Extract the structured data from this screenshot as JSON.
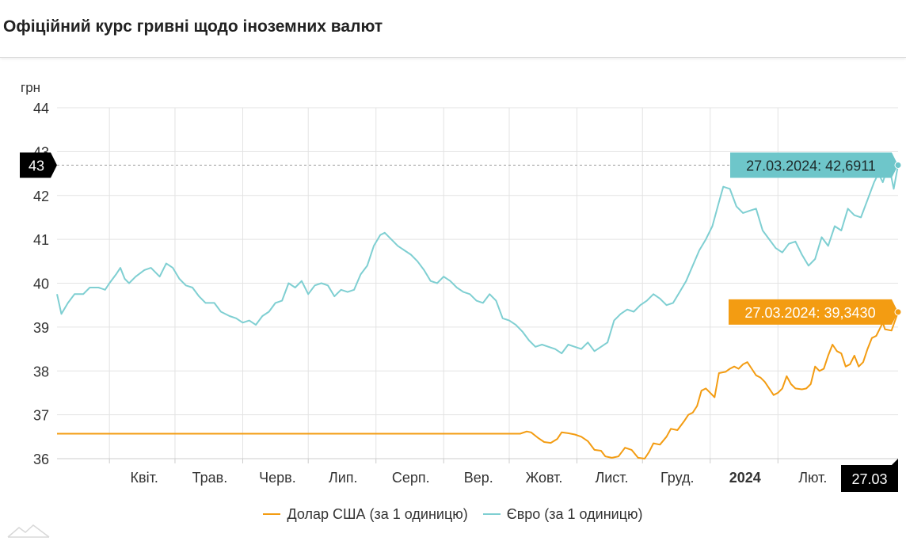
{
  "title": "Офіційний курс гривні щодо іноземних валют",
  "legend": {
    "usd": "Долар США (за 1 одиницю)",
    "eur": "Євро (за 1 одиницю)"
  },
  "colors": {
    "usd": "#f39c12",
    "eur": "#7fcfd2",
    "usd_label_bg": "#f39c12",
    "eur_label_bg": "#6ec6ca",
    "marker_bg": "#000000"
  },
  "crosshair": {
    "y_value_label": "43",
    "x_date_label": "27.03"
  },
  "chart_data": {
    "type": "line",
    "ylabel": "грн",
    "ylim": [
      36,
      44
    ],
    "yticks": [
      "36",
      "37",
      "38",
      "39",
      "40",
      "41",
      "42",
      "43",
      "44"
    ],
    "xlim": [
      "2023-03-08",
      "2024-03-27"
    ],
    "xticks": [
      {
        "label": "Квіт.",
        "date": "2023-04-01",
        "bold": false
      },
      {
        "label": "Трав.",
        "date": "2023-05-01",
        "bold": false
      },
      {
        "label": "Черв.",
        "date": "2023-06-01",
        "bold": false
      },
      {
        "label": "Лип.",
        "date": "2023-07-01",
        "bold": false
      },
      {
        "label": "Серп.",
        "date": "2023-08-01",
        "bold": false
      },
      {
        "label": "Вер.",
        "date": "2023-09-01",
        "bold": false
      },
      {
        "label": "Жовт.",
        "date": "2023-10-01",
        "bold": false
      },
      {
        "label": "Лист.",
        "date": "2023-11-01",
        "bold": false
      },
      {
        "label": "Груд.",
        "date": "2023-12-01",
        "bold": false
      },
      {
        "label": "2024",
        "date": "2024-01-01",
        "bold": true
      },
      {
        "label": "Лют.",
        "date": "2024-02-01",
        "bold": false
      }
    ],
    "grid": true,
    "series": [
      {
        "name": "Долар США (за 1 одиницю)",
        "key": "usd",
        "points": [
          [
            "2023-03-08",
            36.5686
          ],
          [
            "2023-10-06",
            36.5686
          ],
          [
            "2023-10-09",
            36.62
          ],
          [
            "2023-10-11",
            36.6
          ],
          [
            "2023-10-14",
            36.48
          ],
          [
            "2023-10-17",
            36.38
          ],
          [
            "2023-10-20",
            36.36
          ],
          [
            "2023-10-23",
            36.45
          ],
          [
            "2023-10-25",
            36.6
          ],
          [
            "2023-10-28",
            36.58
          ],
          [
            "2023-10-31",
            36.55
          ],
          [
            "2023-11-03",
            36.5
          ],
          [
            "2023-11-06",
            36.4
          ],
          [
            "2023-11-09",
            36.2
          ],
          [
            "2023-11-12",
            36.18
          ],
          [
            "2023-11-14",
            36.05
          ],
          [
            "2023-11-17",
            36.02
          ],
          [
            "2023-11-20",
            36.05
          ],
          [
            "2023-11-23",
            36.25
          ],
          [
            "2023-11-26",
            36.2
          ],
          [
            "2023-11-29",
            36.02
          ],
          [
            "2023-12-02",
            36.0
          ],
          [
            "2023-12-04",
            36.15
          ],
          [
            "2023-12-06",
            36.35
          ],
          [
            "2023-12-09",
            36.32
          ],
          [
            "2023-12-12",
            36.5
          ],
          [
            "2023-12-14",
            36.68
          ],
          [
            "2023-12-17",
            36.65
          ],
          [
            "2023-12-20",
            36.85
          ],
          [
            "2023-12-22",
            37.0
          ],
          [
            "2023-12-24",
            37.05
          ],
          [
            "2023-12-26",
            37.2
          ],
          [
            "2023-12-28",
            37.55
          ],
          [
            "2023-12-30",
            37.6
          ],
          [
            "2024-01-01",
            37.5
          ],
          [
            "2024-01-03",
            37.4
          ],
          [
            "2024-01-05",
            37.95
          ],
          [
            "2024-01-08",
            37.98
          ],
          [
            "2024-01-10",
            38.05
          ],
          [
            "2024-01-12",
            38.1
          ],
          [
            "2024-01-14",
            38.05
          ],
          [
            "2024-01-16",
            38.15
          ],
          [
            "2024-01-18",
            38.2
          ],
          [
            "2024-01-20",
            38.05
          ],
          [
            "2024-01-22",
            37.9
          ],
          [
            "2024-01-24",
            37.85
          ],
          [
            "2024-01-26",
            37.75
          ],
          [
            "2024-01-28",
            37.6
          ],
          [
            "2024-01-30",
            37.45
          ],
          [
            "2024-02-01",
            37.5
          ],
          [
            "2024-02-03",
            37.6
          ],
          [
            "2024-02-05",
            37.88
          ],
          [
            "2024-02-07",
            37.7
          ],
          [
            "2024-02-09",
            37.6
          ],
          [
            "2024-02-12",
            37.58
          ],
          [
            "2024-02-14",
            37.6
          ],
          [
            "2024-02-16",
            37.7
          ],
          [
            "2024-02-18",
            38.1
          ],
          [
            "2024-02-20",
            38.0
          ],
          [
            "2024-02-22",
            38.05
          ],
          [
            "2024-02-24",
            38.35
          ],
          [
            "2024-02-26",
            38.6
          ],
          [
            "2024-02-28",
            38.45
          ],
          [
            "2024-03-01",
            38.4
          ],
          [
            "2024-03-03",
            38.1
          ],
          [
            "2024-03-05",
            38.15
          ],
          [
            "2024-03-07",
            38.35
          ],
          [
            "2024-03-09",
            38.1
          ],
          [
            "2024-03-11",
            38.2
          ],
          [
            "2024-03-13",
            38.5
          ],
          [
            "2024-03-15",
            38.75
          ],
          [
            "2024-03-17",
            38.8
          ],
          [
            "2024-03-19",
            39.0
          ],
          [
            "2024-03-20",
            39.1
          ],
          [
            "2024-03-21",
            38.95
          ],
          [
            "2024-03-24",
            38.92
          ],
          [
            "2024-03-26",
            39.2
          ],
          [
            "2024-03-27",
            39.343
          ]
        ],
        "last_label": "27.03.2024: 39,3430"
      },
      {
        "name": "Євро (за 1 одиницю)",
        "key": "eur",
        "points": [
          [
            "2023-03-08",
            39.75
          ],
          [
            "2023-03-10",
            39.3
          ],
          [
            "2023-03-13",
            39.55
          ],
          [
            "2023-03-16",
            39.75
          ],
          [
            "2023-03-20",
            39.75
          ],
          [
            "2023-03-23",
            39.9
          ],
          [
            "2023-03-27",
            39.9
          ],
          [
            "2023-03-30",
            39.85
          ],
          [
            "2023-04-01",
            40.0
          ],
          [
            "2023-04-04",
            40.2
          ],
          [
            "2023-04-06",
            40.35
          ],
          [
            "2023-04-08",
            40.1
          ],
          [
            "2023-04-10",
            40.0
          ],
          [
            "2023-04-13",
            40.15
          ],
          [
            "2023-04-17",
            40.3
          ],
          [
            "2023-04-20",
            40.35
          ],
          [
            "2023-04-24",
            40.15
          ],
          [
            "2023-04-27",
            40.45
          ],
          [
            "2023-04-30",
            40.35
          ],
          [
            "2023-05-03",
            40.1
          ],
          [
            "2023-05-06",
            39.95
          ],
          [
            "2023-05-09",
            39.9
          ],
          [
            "2023-05-12",
            39.7
          ],
          [
            "2023-05-15",
            39.55
          ],
          [
            "2023-05-19",
            39.55
          ],
          [
            "2023-05-22",
            39.35
          ],
          [
            "2023-05-26",
            39.25
          ],
          [
            "2023-05-29",
            39.2
          ],
          [
            "2023-06-01",
            39.1
          ],
          [
            "2023-06-04",
            39.15
          ],
          [
            "2023-06-07",
            39.05
          ],
          [
            "2023-06-10",
            39.25
          ],
          [
            "2023-06-13",
            39.35
          ],
          [
            "2023-06-16",
            39.55
          ],
          [
            "2023-06-19",
            39.6
          ],
          [
            "2023-06-22",
            40.0
          ],
          [
            "2023-06-25",
            39.9
          ],
          [
            "2023-06-28",
            40.05
          ],
          [
            "2023-07-01",
            39.75
          ],
          [
            "2023-07-04",
            39.95
          ],
          [
            "2023-07-07",
            40.0
          ],
          [
            "2023-07-10",
            39.95
          ],
          [
            "2023-07-13",
            39.7
          ],
          [
            "2023-07-16",
            39.85
          ],
          [
            "2023-07-19",
            39.8
          ],
          [
            "2023-07-22",
            39.85
          ],
          [
            "2023-07-25",
            40.2
          ],
          [
            "2023-07-28",
            40.4
          ],
          [
            "2023-07-31",
            40.85
          ],
          [
            "2023-08-03",
            41.1
          ],
          [
            "2023-08-05",
            41.15
          ],
          [
            "2023-08-08",
            41.0
          ],
          [
            "2023-08-11",
            40.85
          ],
          [
            "2023-08-14",
            40.75
          ],
          [
            "2023-08-17",
            40.65
          ],
          [
            "2023-08-20",
            40.5
          ],
          [
            "2023-08-23",
            40.3
          ],
          [
            "2023-08-26",
            40.05
          ],
          [
            "2023-08-29",
            40.0
          ],
          [
            "2023-09-01",
            40.15
          ],
          [
            "2023-09-04",
            40.05
          ],
          [
            "2023-09-07",
            39.9
          ],
          [
            "2023-09-10",
            39.8
          ],
          [
            "2023-09-13",
            39.75
          ],
          [
            "2023-09-16",
            39.6
          ],
          [
            "2023-09-19",
            39.55
          ],
          [
            "2023-09-22",
            39.75
          ],
          [
            "2023-09-25",
            39.6
          ],
          [
            "2023-09-28",
            39.2
          ],
          [
            "2023-10-01",
            39.15
          ],
          [
            "2023-10-04",
            39.05
          ],
          [
            "2023-10-07",
            38.9
          ],
          [
            "2023-10-10",
            38.7
          ],
          [
            "2023-10-13",
            38.55
          ],
          [
            "2023-10-16",
            38.6
          ],
          [
            "2023-10-19",
            38.55
          ],
          [
            "2023-10-22",
            38.5
          ],
          [
            "2023-10-25",
            38.4
          ],
          [
            "2023-10-28",
            38.6
          ],
          [
            "2023-10-31",
            38.55
          ],
          [
            "2023-11-03",
            38.5
          ],
          [
            "2023-11-06",
            38.65
          ],
          [
            "2023-11-09",
            38.45
          ],
          [
            "2023-11-12",
            38.55
          ],
          [
            "2023-11-15",
            38.65
          ],
          [
            "2023-11-18",
            39.15
          ],
          [
            "2023-11-21",
            39.3
          ],
          [
            "2023-11-24",
            39.4
          ],
          [
            "2023-11-27",
            39.35
          ],
          [
            "2023-11-30",
            39.5
          ],
          [
            "2023-12-03",
            39.6
          ],
          [
            "2023-12-06",
            39.75
          ],
          [
            "2023-12-09",
            39.65
          ],
          [
            "2023-12-12",
            39.5
          ],
          [
            "2023-12-15",
            39.55
          ],
          [
            "2023-12-18",
            39.8
          ],
          [
            "2023-12-21",
            40.05
          ],
          [
            "2023-12-24",
            40.4
          ],
          [
            "2023-12-27",
            40.75
          ],
          [
            "2023-12-30",
            41.0
          ],
          [
            "2024-01-02",
            41.3
          ],
          [
            "2024-01-05",
            41.85
          ],
          [
            "2024-01-07",
            42.2
          ],
          [
            "2024-01-10",
            42.15
          ],
          [
            "2024-01-13",
            41.75
          ],
          [
            "2024-01-16",
            41.6
          ],
          [
            "2024-01-19",
            41.65
          ],
          [
            "2024-01-22",
            41.7
          ],
          [
            "2024-01-25",
            41.2
          ],
          [
            "2024-01-28",
            41.0
          ],
          [
            "2024-01-31",
            40.8
          ],
          [
            "2024-02-03",
            40.7
          ],
          [
            "2024-02-06",
            40.9
          ],
          [
            "2024-02-09",
            40.95
          ],
          [
            "2024-02-12",
            40.65
          ],
          [
            "2024-02-15",
            40.4
          ],
          [
            "2024-02-18",
            40.55
          ],
          [
            "2024-02-21",
            41.05
          ],
          [
            "2024-02-24",
            40.85
          ],
          [
            "2024-02-27",
            41.3
          ],
          [
            "2024-03-01",
            41.2
          ],
          [
            "2024-03-04",
            41.7
          ],
          [
            "2024-03-07",
            41.55
          ],
          [
            "2024-03-10",
            41.5
          ],
          [
            "2024-03-13",
            41.9
          ],
          [
            "2024-03-16",
            42.3
          ],
          [
            "2024-03-18",
            42.5
          ],
          [
            "2024-03-20",
            42.3
          ],
          [
            "2024-03-22",
            42.6
          ],
          [
            "2024-03-24",
            42.4
          ],
          [
            "2024-03-25",
            42.15
          ],
          [
            "2024-03-27",
            42.6911
          ]
        ],
        "last_label": "27.03.2024: 42,6911"
      }
    ]
  }
}
